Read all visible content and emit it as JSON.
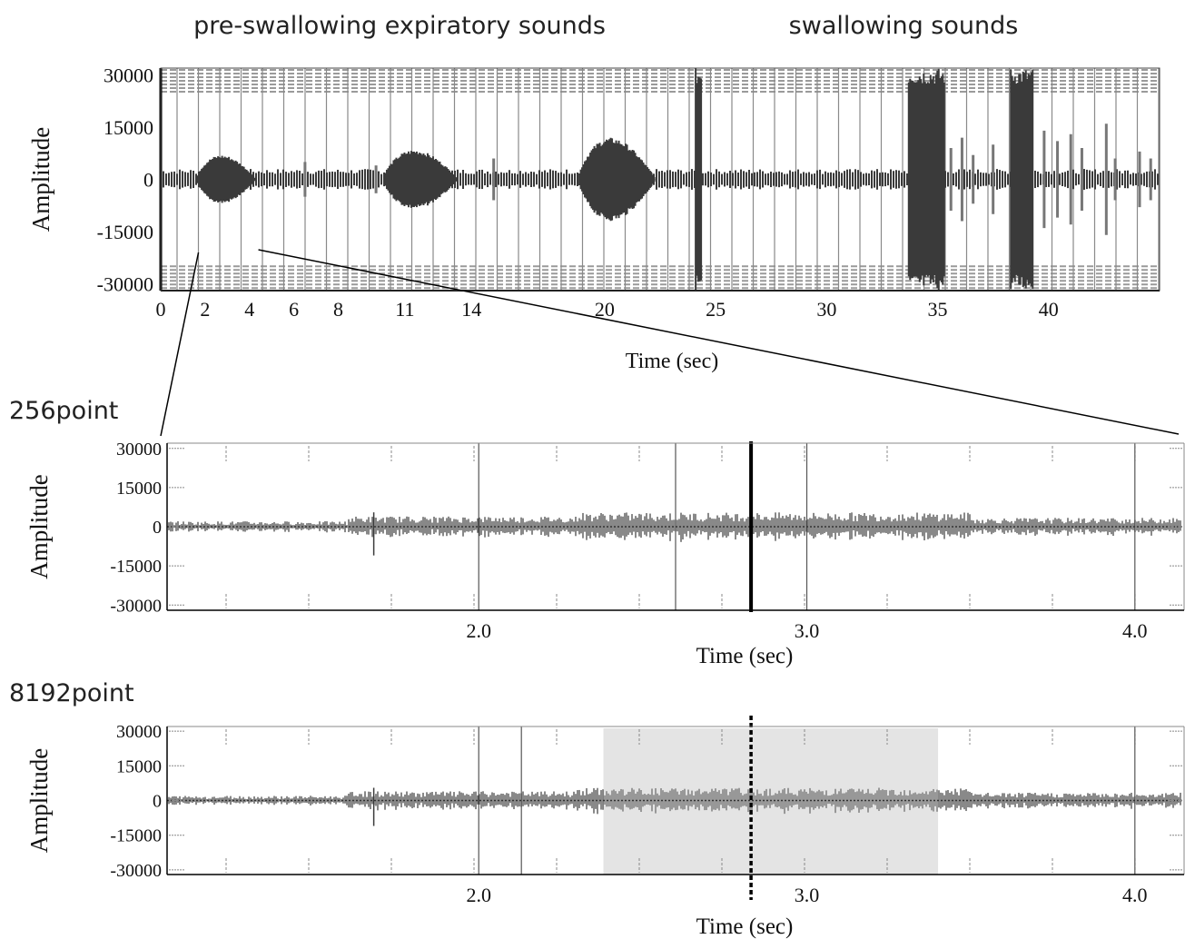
{
  "header": {
    "left_label": "pre-swallowing expiratory sounds",
    "right_label": "swallowing sounds"
  },
  "chart_data": [
    {
      "id": "overview",
      "type": "line",
      "title": "",
      "xlabel": "Time (sec)",
      "ylabel": "Amplitude",
      "xlim": [
        0,
        45
      ],
      "ylim": [
        -32000,
        32000
      ],
      "x_ticks": [
        0,
        2,
        4,
        6,
        8,
        11,
        14,
        20,
        25,
        30,
        35,
        40
      ],
      "y_ticks": [
        30000,
        15000,
        0,
        -15000,
        -30000
      ],
      "grid": true,
      "series": [
        {
          "description_of_bursts": "sound bursts (time in sec, peak amplitude)",
          "bursts": [
            {
              "t_start": 1.6,
              "t_end": 4.3,
              "peak": 7000
            },
            {
              "t_start": 10.0,
              "t_end": 13.4,
              "peak": 8500
            },
            {
              "t_start": 18.8,
              "t_end": 22.3,
              "peak": 12000
            },
            {
              "t_start": 24.1,
              "t_end": 24.4,
              "peak": 32000
            },
            {
              "t_start": 33.7,
              "t_end": 35.3,
              "peak": 32000
            },
            {
              "t_start": 38.3,
              "t_end": 39.3,
              "peak": 32000
            }
          ]
        }
      ]
    },
    {
      "id": "zoom-256",
      "type": "line",
      "panel_label": "256point",
      "xlabel": "Time (sec)",
      "ylabel": "Amplitude",
      "xlim": [
        1.05,
        4.15
      ],
      "ylim": [
        -32000,
        32000
      ],
      "x_ticks": [
        2.0,
        3.0,
        4.0
      ],
      "x_tick_labels": [
        "2.0",
        "3.0",
        "4.0"
      ],
      "y_ticks": [
        30000,
        15000,
        0,
        -15000,
        -30000
      ],
      "segment_lines": [
        2.0,
        2.6,
        3.0,
        4.0
      ],
      "marker_time": 2.83,
      "marker_style": "solid"
    },
    {
      "id": "zoom-8192",
      "type": "line",
      "panel_label": "8192point",
      "xlabel": "Time (sec)",
      "ylabel": "Amplitude",
      "xlim": [
        1.05,
        4.15
      ],
      "ylim": [
        -32000,
        32000
      ],
      "x_ticks": [
        2.0,
        3.0,
        4.0
      ],
      "x_tick_labels": [
        "2.0",
        "3.0",
        "4.0"
      ],
      "y_ticks": [
        30000,
        15000,
        0,
        -15000,
        -30000
      ],
      "segment_lines": [
        2.0,
        2.13,
        4.0
      ],
      "highlight": [
        2.38,
        3.4
      ],
      "marker_time": 2.83,
      "marker_style": "dashed"
    }
  ],
  "colors": {
    "waveform": "#3a3a3a",
    "highlight": "#e4e4e4",
    "axis": "#000000",
    "grid": "#9a9a9a"
  }
}
